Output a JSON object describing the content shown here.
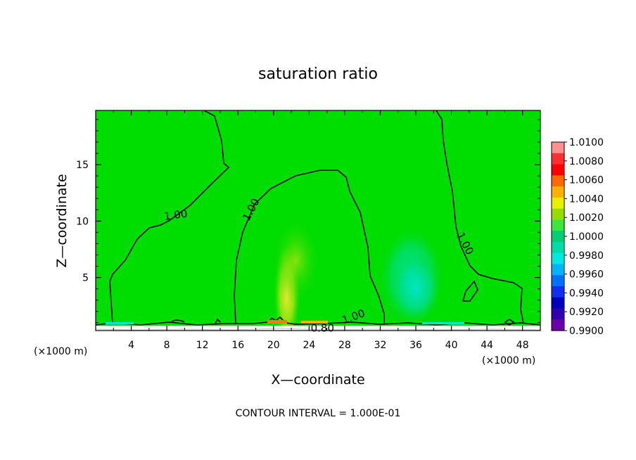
{
  "chart_data": {
    "type": "heatmap",
    "title": "saturation ratio",
    "xlabel": "X—coordinate",
    "ylabel": "Z—coordinate",
    "x_unit": "(×1000 m)",
    "x_unit_right": "(×1000 m)",
    "xlim": [
      0,
      50
    ],
    "ylim": [
      0.3,
      19.8
    ],
    "x_ticks": [
      {
        "value": 4,
        "label": "4"
      },
      {
        "value": 8,
        "label": "8"
      },
      {
        "value": 12,
        "label": "12"
      },
      {
        "value": 16,
        "label": "16"
      },
      {
        "value": 20,
        "label": "20"
      },
      {
        "value": 24,
        "label": "24"
      },
      {
        "value": 28,
        "label": "28"
      },
      {
        "value": 32,
        "label": "32"
      },
      {
        "value": 36,
        "label": "36"
      },
      {
        "value": 40,
        "label": "40"
      },
      {
        "value": 44,
        "label": "44"
      },
      {
        "value": 48,
        "label": "48"
      }
    ],
    "y_ticks": [
      {
        "value": 5,
        "label": "5"
      },
      {
        "value": 10,
        "label": "10"
      },
      {
        "value": 15,
        "label": "15"
      }
    ],
    "colorbar": {
      "min": 0.99,
      "max": 1.01,
      "labels": [
        "1.0100",
        "1.0080",
        "1.0060",
        "1.0040",
        "1.0020",
        "1.0000",
        "0.9980",
        "0.9960",
        "0.9940",
        "0.9920",
        "0.9900"
      ],
      "colors": [
        "#ff9090",
        "#ff3030",
        "#ff0000",
        "#ff6a00",
        "#ffb000",
        "#e6f000",
        "#96dc00",
        "#3ce63c",
        "#00d070",
        "#00dca8",
        "#00e8e0",
        "#00b4ff",
        "#0070ff",
        "#1030f0",
        "#0000c0",
        "#3000b0",
        "#6a00a8"
      ]
    },
    "field": {
      "background_value": 1.0,
      "background_color": "#00dd00",
      "blobs": [
        {
          "x": 21.5,
          "z": 3.5,
          "value": 1.0025,
          "color": "#e6ee20"
        },
        {
          "x": 22.5,
          "z": 6.5,
          "value": 1.0015,
          "color": "#96dc00"
        },
        {
          "x": 35.5,
          "z": 5.0,
          "value": 0.9978,
          "color": "#00dca0"
        },
        {
          "x": 36.0,
          "z": 4.0,
          "value": 0.9972,
          "color": "#00e6c8"
        }
      ]
    },
    "contours": [
      {
        "label": "1.00",
        "label_x": 9.0,
        "label_z": 10.5
      },
      {
        "label": "1.00",
        "label_x": 17.5,
        "label_z": 11.0
      },
      {
        "label": "1.00",
        "label_x": 41.5,
        "label_z": 8.0
      },
      {
        "label": "1.00",
        "label_x": 29.0,
        "label_z": 1.5
      },
      {
        "label": "0.80",
        "label_x": 25.5,
        "label_z": 0.5
      }
    ],
    "contour_interval_text": "CONTOUR INTERVAL = 1.000E-01"
  }
}
